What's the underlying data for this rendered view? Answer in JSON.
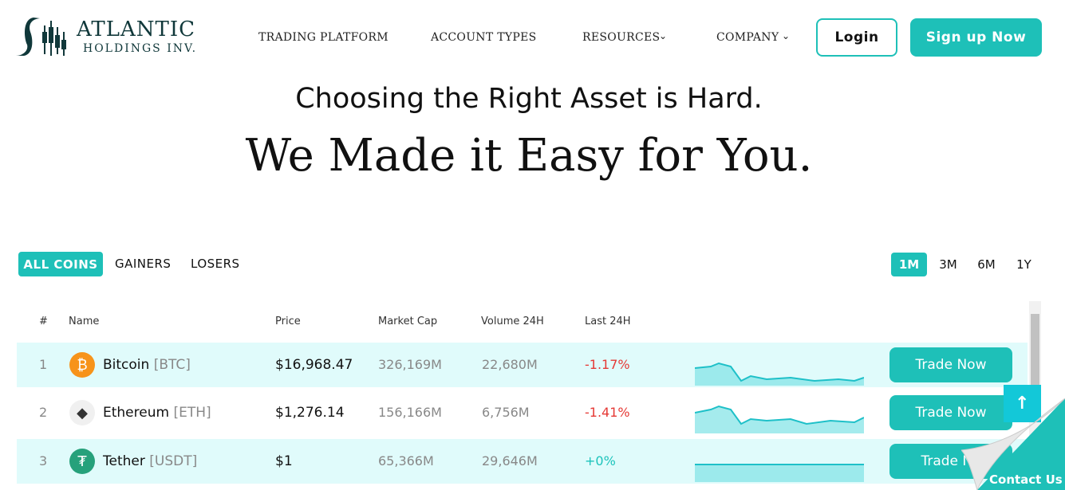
{
  "header": {
    "logo_title": "ATLANTIC",
    "logo_subtitle": "HOLDINGS INV.",
    "nav": [
      "TRADING PLATFORM",
      "ACCOUNT TYPES",
      "RESOURCES",
      "COMPANY"
    ],
    "login": "Login",
    "signup": "Sign up Now"
  },
  "hero": {
    "subtitle": "Choosing the Right Asset is Hard.",
    "title": "We Made it Easy for You."
  },
  "filters": {
    "tabs": [
      "ALL COINS",
      "GAINERS",
      "LOSERS"
    ],
    "periods": [
      "1M",
      "3M",
      "6M",
      "1Y"
    ]
  },
  "table": {
    "columns": [
      "#",
      "Name",
      "Price",
      "Market Cap",
      "Volume 24H",
      "Last 24H"
    ],
    "rows": [
      {
        "rank": "1",
        "name": "Bitcoin",
        "symbol": "[BTC]",
        "price": "$16,968.47",
        "market_cap": "326,169M",
        "volume": "22,680M",
        "change": "-1.17%",
        "action": "Trade Now"
      },
      {
        "rank": "2",
        "name": "Ethereum",
        "symbol": "[ETH]",
        "price": "$1,276.14",
        "market_cap": "156,166M",
        "volume": "6,756M",
        "change": "-1.41%",
        "action": "Trade Now"
      },
      {
        "rank": "3",
        "name": "Tether",
        "symbol": "[USDT]",
        "price": "$1",
        "market_cap": "65,366M",
        "volume": "29,646M",
        "change": "+0%",
        "action": "Trade No"
      }
    ]
  },
  "contact": "Contact Us"
}
